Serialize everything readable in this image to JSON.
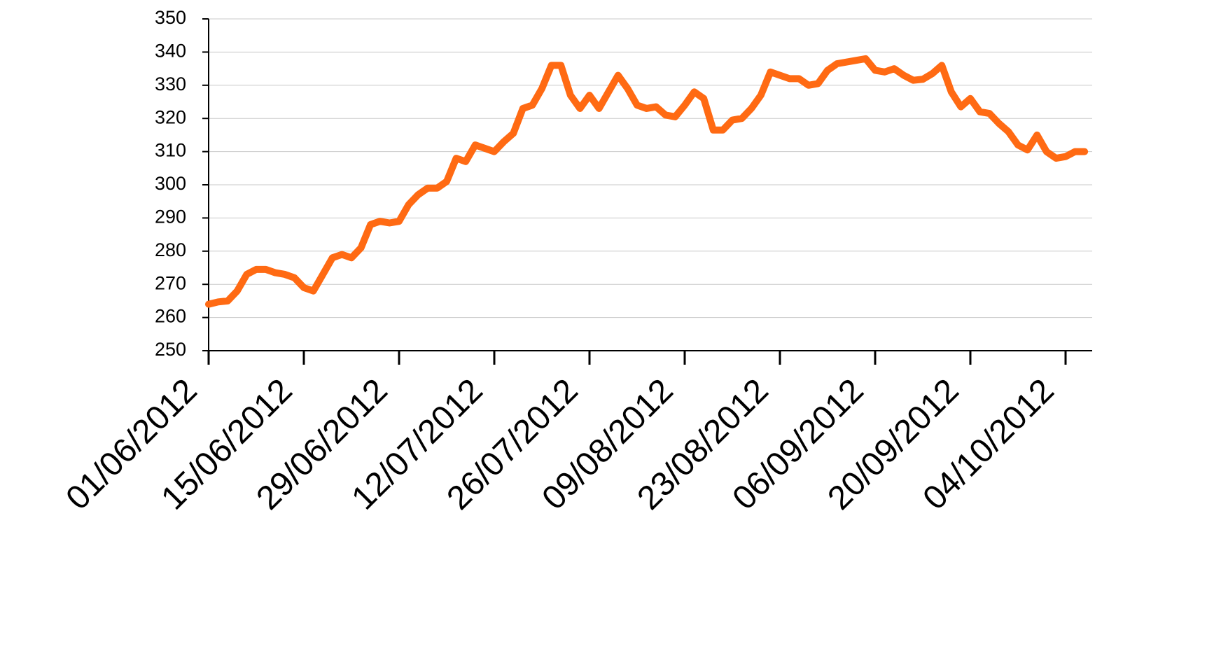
{
  "chart_data": {
    "type": "line",
    "categories": [
      "01/06/2012",
      null,
      null,
      null,
      null,
      null,
      null,
      null,
      null,
      null,
      "15/06/2012",
      null,
      null,
      null,
      null,
      null,
      null,
      null,
      null,
      null,
      "29/06/2012",
      null,
      null,
      null,
      null,
      null,
      null,
      null,
      null,
      null,
      "12/07/2012",
      null,
      null,
      null,
      null,
      null,
      null,
      null,
      null,
      null,
      "26/07/2012",
      null,
      null,
      null,
      null,
      null,
      null,
      null,
      null,
      null,
      "09/08/2012",
      null,
      null,
      null,
      null,
      null,
      null,
      null,
      null,
      null,
      "23/08/2012",
      null,
      null,
      null,
      null,
      null,
      null,
      null,
      null,
      null,
      "06/09/2012",
      null,
      null,
      null,
      null,
      null,
      null,
      null,
      null,
      null,
      "20/09/2012",
      null,
      null,
      null,
      null,
      null,
      null,
      null,
      null,
      null,
      "04/10/2012",
      null,
      null
    ],
    "series": [
      {
        "color": "#ff6a13",
        "values": [
          264,
          264.7,
          265,
          268,
          273,
          274.5,
          274.5,
          273.5,
          273,
          272,
          269,
          268,
          273,
          278,
          279,
          278,
          281,
          288,
          289,
          288.5,
          289,
          294,
          297,
          299,
          299,
          301,
          308,
          307,
          312,
          311,
          310,
          313,
          315.5,
          323,
          324,
          329,
          336,
          336,
          327,
          323,
          327,
          323,
          328,
          333,
          329,
          324,
          323,
          323.5,
          321,
          320.5,
          324,
          328,
          326,
          316.5,
          316.5,
          319.5,
          320,
          323,
          327,
          334,
          333,
          332,
          332,
          330,
          330.5,
          334.5,
          336.5,
          337,
          337.5,
          338,
          334.5,
          334,
          335,
          333,
          331.5,
          331.8,
          333.5,
          336,
          328,
          323.5,
          326,
          322,
          321.5,
          318.5,
          316,
          312,
          310.5,
          315,
          310,
          308,
          308.5,
          310,
          310
        ]
      }
    ],
    "ylim": [
      250,
      350
    ],
    "yticks": [
      250,
      260,
      270,
      280,
      290,
      300,
      310,
      320,
      330,
      340,
      350
    ],
    "grid": true
  }
}
